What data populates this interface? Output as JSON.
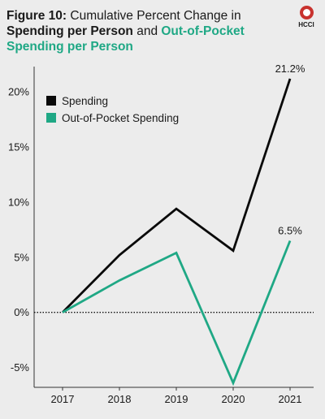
{
  "header": {
    "fig_label": "Figure 10:",
    "title_part1": " Cumulative Percent Change in ",
    "title_bold": "Spending per Person",
    "title_and": " and ",
    "title_green": "Out-of-Pocket Spending per Person"
  },
  "logo": {
    "text": "HCCI",
    "icon": "hcci-logo-icon"
  },
  "colors": {
    "spending": "#0a0a0a",
    "oop": "#1fa885",
    "background": "#ececec"
  },
  "chart_data": {
    "type": "line",
    "x": [
      "2017",
      "2018",
      "2019",
      "2020",
      "2021"
    ],
    "series": [
      {
        "name": "Spending",
        "values": [
          0.0,
          5.2,
          9.4,
          5.6,
          21.2
        ]
      },
      {
        "name": "Out-of-Pocket Spending",
        "values": [
          0.0,
          2.9,
          5.4,
          -6.4,
          6.5
        ]
      }
    ],
    "data_labels": [
      {
        "series": 0,
        "index": 4,
        "text": "21.2%"
      },
      {
        "series": 1,
        "index": 4,
        "text": "6.5%"
      }
    ],
    "yticks": [
      -5,
      0,
      5,
      10,
      15,
      20
    ],
    "ytick_labels": [
      "-5%",
      "0%",
      "5%",
      "10%",
      "15%",
      "20%"
    ],
    "ylim": [
      -6.8,
      22.3
    ],
    "zero_line": "dotted",
    "grid": false,
    "legend_position": "top-left"
  }
}
